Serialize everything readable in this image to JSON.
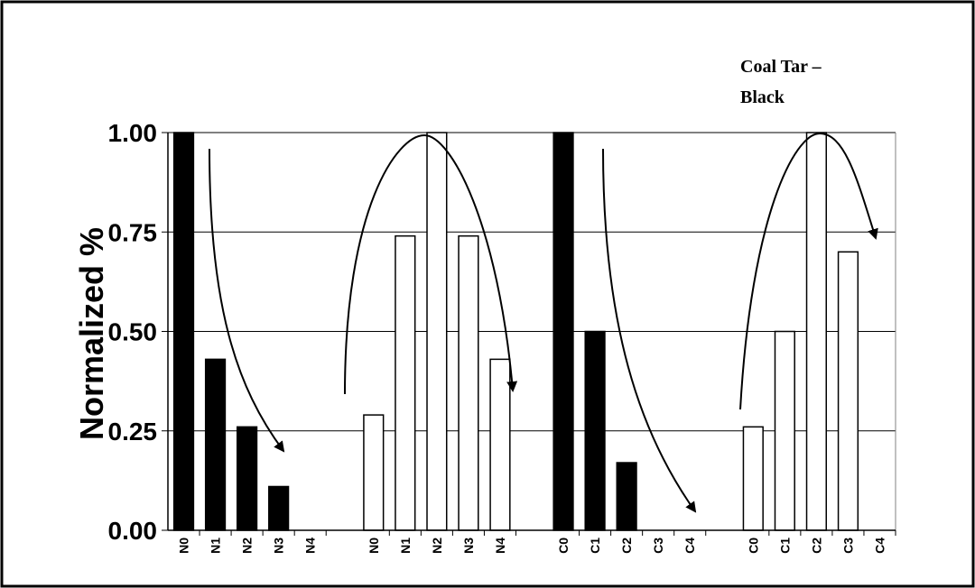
{
  "chart_data": {
    "type": "bar",
    "ylabel": "Normalized %",
    "ylim": [
      0,
      1
    ],
    "yticks": [
      "0.00",
      "0.25",
      "0.50",
      "0.75",
      "1.00"
    ],
    "grid": true,
    "annotation": [
      "Coal Tar –",
      "Black"
    ],
    "groups": [
      {
        "fill": "#000000",
        "categories": [
          "N0",
          "N1",
          "N2",
          "N3",
          "N4"
        ],
        "values": [
          1.0,
          0.43,
          0.26,
          0.11,
          0.0
        ]
      },
      {
        "fill": "#ffffff",
        "categories": [
          "N0",
          "N1",
          "N2",
          "N3",
          "N4"
        ],
        "values": [
          0.29,
          0.74,
          1.0,
          0.74,
          0.43
        ]
      },
      {
        "fill": "#000000",
        "categories": [
          "C0",
          "C1",
          "C2",
          "C3",
          "C4"
        ],
        "values": [
          1.0,
          0.5,
          0.17,
          0.0,
          0.0
        ]
      },
      {
        "fill": "#ffffff",
        "categories": [
          "C0",
          "C1",
          "C2",
          "C3",
          "C4"
        ],
        "values": [
          0.26,
          0.5,
          1.0,
          0.7,
          0.0
        ]
      }
    ]
  }
}
